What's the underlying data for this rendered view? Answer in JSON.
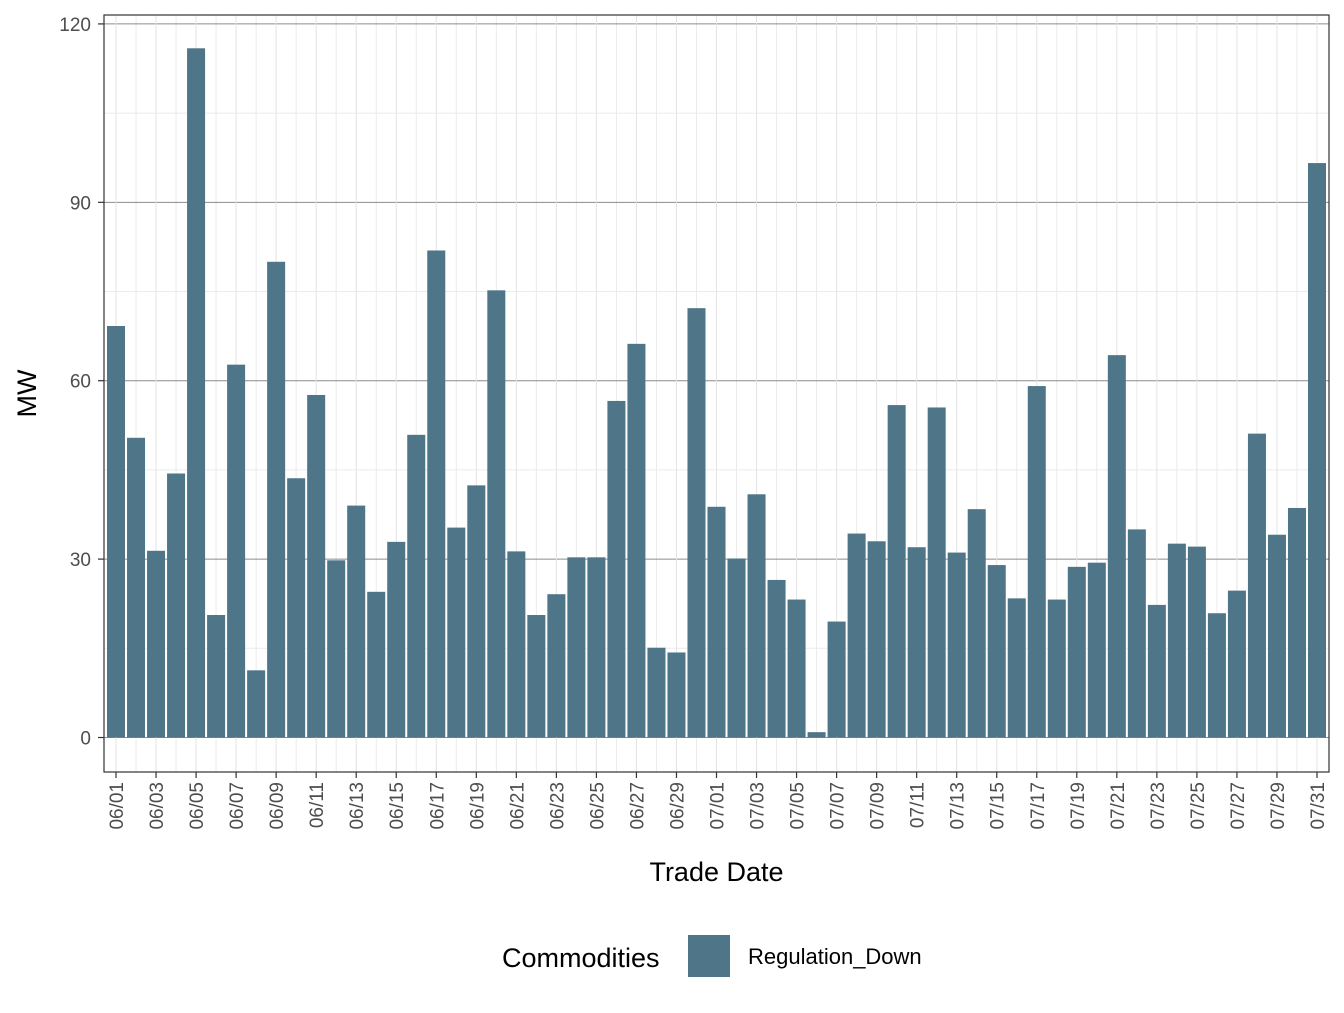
{
  "chart_data": {
    "type": "bar",
    "xlabel": "Trade Date",
    "ylabel": "MW",
    "ylim": [
      -5.8,
      121.5
    ],
    "yticks": [
      0,
      30,
      60,
      90,
      120
    ],
    "ytick_labels": [
      "0",
      "30",
      "60",
      "90",
      "120"
    ],
    "categories": [
      "06/01",
      "06/02",
      "06/03",
      "06/04",
      "06/05",
      "06/06",
      "06/07",
      "06/08",
      "06/09",
      "06/10",
      "06/11",
      "06/12",
      "06/13",
      "06/14",
      "06/15",
      "06/16",
      "06/17",
      "06/18",
      "06/19",
      "06/20",
      "06/21",
      "06/22",
      "06/23",
      "06/24",
      "06/25",
      "06/26",
      "06/27",
      "06/28",
      "06/29",
      "06/30",
      "07/01",
      "07/02",
      "07/03",
      "07/04",
      "07/05",
      "07/06",
      "07/07",
      "07/08",
      "07/09",
      "07/10",
      "07/11",
      "07/12",
      "07/13",
      "07/14",
      "07/15",
      "07/16",
      "07/17",
      "07/18",
      "07/19",
      "07/20",
      "07/21",
      "07/22",
      "07/23",
      "07/24",
      "07/25",
      "07/26",
      "07/27",
      "07/28",
      "07/29",
      "07/30",
      "07/31"
    ],
    "xtick_labels": [
      "06/01",
      "06/03",
      "06/05",
      "06/07",
      "06/09",
      "06/11",
      "06/13",
      "06/15",
      "06/17",
      "06/19",
      "06/21",
      "06/23",
      "06/25",
      "06/27",
      "06/29",
      "07/01",
      "07/03",
      "07/05",
      "07/07",
      "07/09",
      "07/11",
      "07/13",
      "07/15",
      "07/17",
      "07/19",
      "07/21",
      "07/23",
      "07/25",
      "07/27",
      "07/29",
      "07/31"
    ],
    "series": [
      {
        "name": "Regulation_Down",
        "color": "#4f7589",
        "values": [
          69.2,
          50.4,
          31.4,
          44.4,
          115.9,
          20.6,
          62.7,
          11.3,
          80.0,
          43.6,
          57.6,
          29.8,
          39.0,
          24.5,
          32.9,
          50.9,
          81.9,
          35.3,
          42.4,
          75.2,
          31.3,
          20.6,
          24.1,
          30.3,
          30.3,
          56.6,
          66.2,
          15.1,
          14.3,
          72.2,
          38.8,
          30.1,
          40.9,
          26.5,
          23.2,
          0.9,
          19.5,
          34.3,
          33.0,
          55.9,
          32.0,
          55.5,
          31.1,
          38.4,
          29.0,
          23.4,
          59.1,
          23.2,
          28.7,
          29.4,
          64.3,
          35.0,
          22.3,
          32.6,
          32.1,
          20.9,
          24.7,
          51.1,
          34.1,
          38.6,
          96.6
        ]
      }
    ],
    "legend": {
      "title": "Commodities",
      "position": "bottom",
      "entries": [
        {
          "label": "Regulation_Down",
          "color": "#4f7589"
        }
      ]
    },
    "grid": true,
    "theme": "bw"
  }
}
